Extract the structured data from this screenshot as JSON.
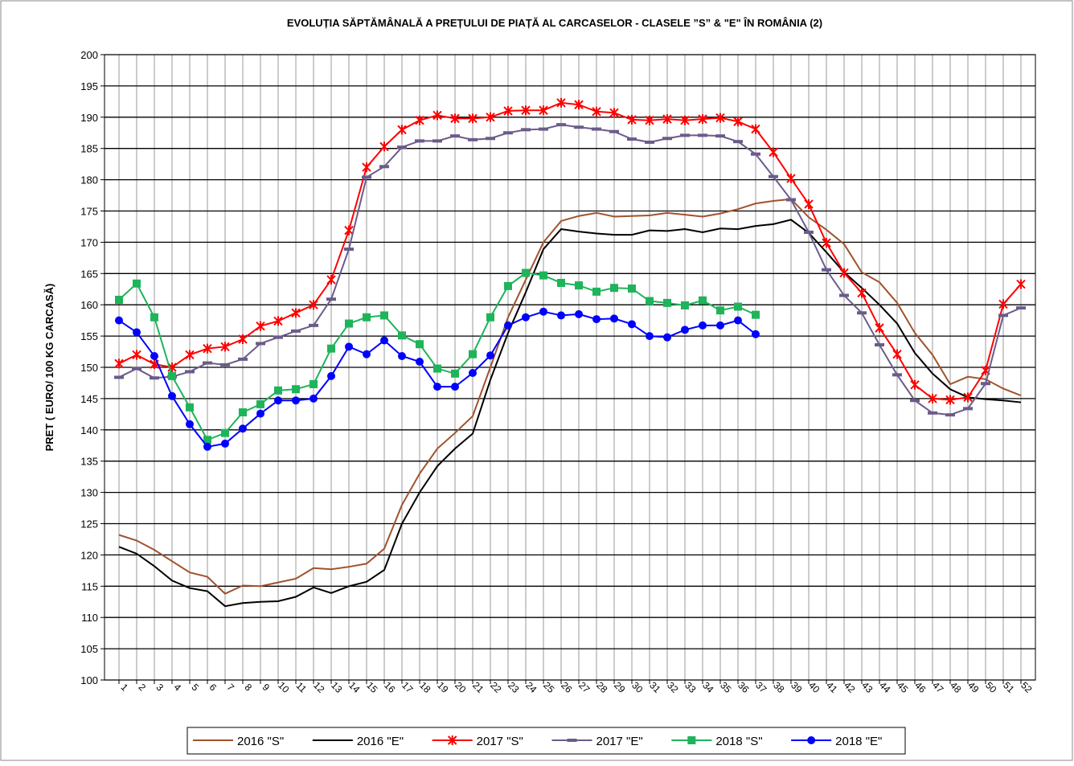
{
  "chart_data": {
    "type": "line",
    "title": "EVOLUȚIA SĂPTĂMÂNALĂ A PREȚULUI  DE PIAȚĂ  AL CARCASELOR  - CLASELE ”S” & \"E\"  ÎN ROMÂNIA (2)",
    "y_label": "PRET ( EURO/ 100 KG CARCASĂ)",
    "categories": [
      "1",
      "2",
      "3",
      "4",
      "5",
      "6",
      "7",
      "8",
      "9",
      "10",
      "11",
      "12",
      "13",
      "14",
      "15",
      "16",
      "17",
      "18",
      "19",
      "20",
      "21",
      "22",
      "23",
      "24",
      "25",
      "26",
      "27",
      "28",
      "29",
      "30",
      "31",
      "32",
      "33",
      "34",
      "35",
      "36",
      "37",
      "38",
      "39",
      "40",
      "41",
      "42",
      "43",
      "44",
      "45",
      "46",
      "47",
      "48",
      "49",
      "50",
      "51",
      "52"
    ],
    "ylim": [
      100,
      200
    ],
    "yticks": [
      100,
      105,
      110,
      115,
      120,
      125,
      130,
      135,
      140,
      145,
      150,
      155,
      160,
      165,
      170,
      175,
      180,
      185,
      190,
      195,
      200
    ],
    "grid": true,
    "series": [
      {
        "name": "2016 \"S\"",
        "color": "#a0522d",
        "marker": "none",
        "values": [
          123.2,
          122.3,
          120.8,
          119,
          117.2,
          116.5,
          113.8,
          115.1,
          115,
          115.6,
          116.2,
          117.9,
          117.7,
          118.1,
          118.6,
          121,
          128,
          133,
          137,
          139.5,
          142.2,
          150,
          158,
          164,
          170,
          173.4,
          174.2,
          174.7,
          174.1,
          174.2,
          174.3,
          174.7,
          174.4,
          174.1,
          174.6,
          175.3,
          176.2,
          176.6,
          176.9,
          174,
          172,
          169.7,
          165.2,
          163.6,
          160.3,
          155.5,
          152,
          147.3,
          148.5,
          148.1,
          146.6,
          145.5
        ]
      },
      {
        "name": "2016 \"E\"",
        "color": "#000000",
        "marker": "none",
        "values": [
          121.3,
          120.2,
          118.2,
          115.9,
          114.7,
          114.2,
          111.8,
          112.3,
          112.5,
          112.6,
          113.3,
          114.8,
          113.9,
          115,
          115.7,
          117.6,
          125,
          130,
          134.2,
          137,
          139.4,
          148,
          155.5,
          162,
          168.9,
          172.1,
          171.7,
          171.4,
          171.2,
          171.2,
          171.9,
          171.8,
          172.1,
          171.6,
          172.2,
          172.1,
          172.6,
          172.9,
          173.6,
          171.5,
          168.4,
          165.2,
          162.7,
          160,
          157,
          152.3,
          149,
          146.5,
          145.2,
          144.9,
          144.7,
          144.4
        ]
      },
      {
        "name": "2017 \"S\"",
        "color": "#ff0000",
        "marker": "star",
        "values": [
          150.6,
          152,
          150.5,
          150,
          152,
          153,
          153.3,
          154.5,
          156.6,
          157.4,
          158.7,
          160,
          164,
          171.9,
          182,
          185.3,
          188,
          189.5,
          190.3,
          189.8,
          189.8,
          190,
          191,
          191.1,
          191.1,
          192.3,
          192,
          190.9,
          190.7,
          189.6,
          189.5,
          189.7,
          189.5,
          189.7,
          189.9,
          189.3,
          188.1,
          184.4,
          180.2,
          176.1,
          169.9,
          165.1,
          161.9,
          156.3,
          152.1,
          147.2,
          145,
          144.8,
          145.2,
          149.5,
          160.1,
          163.3
        ]
      },
      {
        "name": "2017 \"E\"",
        "color": "#6b5b8a",
        "marker": "dash",
        "values": [
          148.4,
          149.8,
          148.3,
          148.5,
          149.3,
          150.7,
          150.4,
          151.3,
          153.8,
          154.8,
          155.8,
          156.7,
          160.9,
          168.9,
          180.4,
          182.1,
          185.2,
          186.2,
          186.2,
          187,
          186.4,
          186.6,
          187.5,
          188,
          188.1,
          188.8,
          188.4,
          188.1,
          187.7,
          186.5,
          186,
          186.6,
          187.1,
          187.1,
          187,
          186.1,
          184.1,
          180.5,
          176.8,
          171.6,
          165.6,
          161.5,
          158.7,
          153.6,
          148.8,
          144.7,
          142.7,
          142.4,
          143.4,
          147.4,
          158.3,
          159.5
        ]
      },
      {
        "name": "2018 \"S\"",
        "color": "#1eb45a",
        "marker": "square",
        "values": [
          160.8,
          163.4,
          158,
          148.6,
          143.6,
          138.4,
          139.5,
          142.8,
          144.1,
          146.3,
          146.5,
          147.3,
          153,
          157,
          158,
          158.3,
          155.1,
          153.7,
          149.8,
          149,
          152.1,
          158,
          163,
          165.1,
          164.7,
          163.5,
          163.1,
          162.1,
          162.7,
          162.6,
          160.6,
          160.3,
          159.9,
          160.7,
          159.1,
          159.7,
          158.4,
          null,
          null,
          null,
          null,
          null,
          null,
          null,
          null,
          null,
          null,
          null,
          null,
          null,
          null,
          null
        ]
      },
      {
        "name": "2018 \"E\"",
        "color": "#0000ff",
        "marker": "circle",
        "values": [
          157.5,
          155.6,
          151.8,
          145.4,
          140.9,
          137.3,
          137.8,
          140.2,
          142.6,
          144.7,
          144.7,
          145,
          148.6,
          153.3,
          152.1,
          154.3,
          151.8,
          150.9,
          146.9,
          146.9,
          149.1,
          151.9,
          156.7,
          158,
          158.9,
          158.3,
          158.5,
          157.7,
          157.8,
          156.9,
          155,
          154.8,
          156,
          156.7,
          156.7,
          157.5,
          155.3,
          null,
          null,
          null,
          null,
          null,
          null,
          null,
          null,
          null,
          null,
          null,
          null,
          null,
          null,
          null
        ]
      }
    ]
  }
}
